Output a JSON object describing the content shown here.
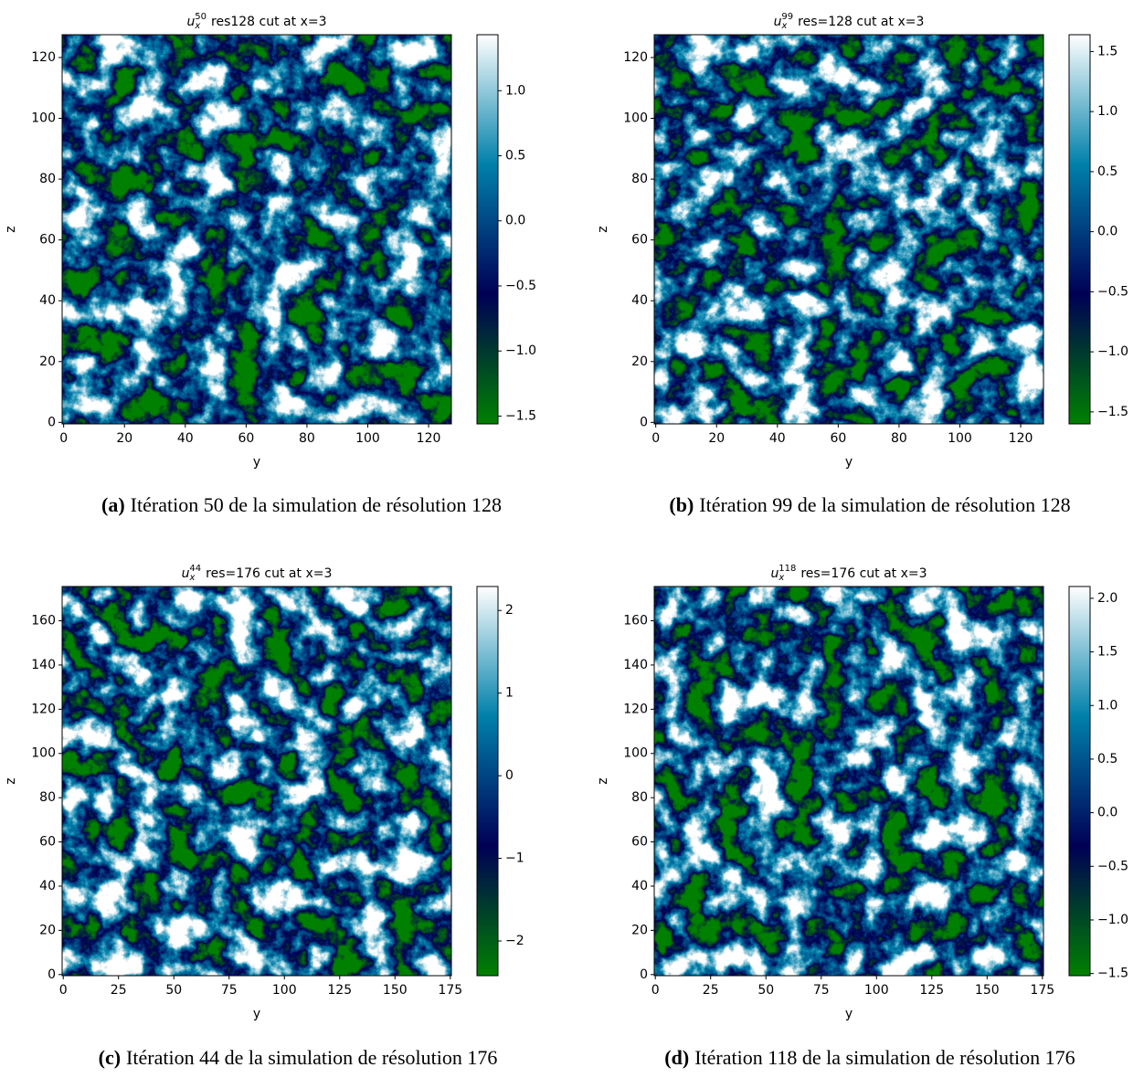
{
  "chart_data": [
    {
      "type": "heatmap",
      "title": {
        "symbol": "u",
        "subscript": "x",
        "superscript": "50",
        "text": "res128 cut at x=3"
      },
      "xlabel": "y",
      "ylabel": "z",
      "xlim": [
        -0.5,
        127.5
      ],
      "ylim": [
        -0.5,
        127.5
      ],
      "xticks": [
        0,
        20,
        40,
        60,
        80,
        100,
        120
      ],
      "yticks": [
        0,
        20,
        40,
        60,
        80,
        100,
        120
      ],
      "clim": [
        -1.56,
        1.43
      ],
      "colorbar_ticks": [
        {
          "value": -1.5,
          "label": "−1.5"
        },
        {
          "value": -1.0,
          "label": "−1.0"
        },
        {
          "value": -0.5,
          "label": "−0.5"
        },
        {
          "value": 0.0,
          "label": "0.0"
        },
        {
          "value": 0.5,
          "label": "0.5"
        },
        {
          "value": 1.0,
          "label": "1.0"
        }
      ],
      "colormap": [
        "#008000",
        "#000055",
        "#0080aa",
        "#ffffff"
      ],
      "caption": {
        "label": "(a)",
        "text": "Itération 50 de la simulation de résolution 128"
      }
    },
    {
      "type": "heatmap",
      "title": {
        "symbol": "u",
        "subscript": "x",
        "superscript": "99",
        "text": "res=128 cut at x=3"
      },
      "xlabel": "y",
      "ylabel": "z",
      "xlim": [
        -0.5,
        127.5
      ],
      "ylim": [
        -0.5,
        127.5
      ],
      "xticks": [
        0,
        20,
        40,
        60,
        80,
        100,
        120
      ],
      "yticks": [
        0,
        20,
        40,
        60,
        80,
        100,
        120
      ],
      "clim": [
        -1.6,
        1.64
      ],
      "colorbar_ticks": [
        {
          "value": -1.5,
          "label": "−1.5"
        },
        {
          "value": -1.0,
          "label": "−1.0"
        },
        {
          "value": -0.5,
          "label": "−0.5"
        },
        {
          "value": 0.0,
          "label": "0.0"
        },
        {
          "value": 0.5,
          "label": "0.5"
        },
        {
          "value": 1.0,
          "label": "1.0"
        },
        {
          "value": 1.5,
          "label": "1.5"
        }
      ],
      "colormap": [
        "#008000",
        "#000055",
        "#0080aa",
        "#ffffff"
      ],
      "caption": {
        "label": "(b)",
        "text": "Itération 99 de la simulation de résolution 128"
      }
    },
    {
      "type": "heatmap",
      "title": {
        "symbol": "u",
        "subscript": "x",
        "superscript": "44",
        "text": "res=176 cut at x=3"
      },
      "xlabel": "y",
      "ylabel": "z",
      "xlim": [
        -0.5,
        175.5
      ],
      "ylim": [
        -0.5,
        175.5
      ],
      "xticks": [
        0,
        25,
        50,
        75,
        100,
        125,
        150,
        175
      ],
      "yticks": [
        0,
        20,
        40,
        60,
        80,
        100,
        120,
        140,
        160
      ],
      "clim": [
        -2.42,
        2.29
      ],
      "colorbar_ticks": [
        {
          "value": -2,
          "label": "−2"
        },
        {
          "value": -1,
          "label": "−1"
        },
        0,
        1,
        2
      ],
      "colormap": [
        "#008000",
        "#000055",
        "#0080aa",
        "#ffffff"
      ],
      "caption": {
        "label": "(c)",
        "text": "Itération 44 de la simulation de résolution 176"
      }
    },
    {
      "type": "heatmap",
      "title": {
        "symbol": "u",
        "subscript": "x",
        "superscript": "118",
        "text": "res=176 cut at x=3"
      },
      "xlabel": "y",
      "ylabel": "z",
      "xlim": [
        -0.5,
        175.5
      ],
      "ylim": [
        -0.5,
        175.5
      ],
      "xticks": [
        0,
        25,
        50,
        75,
        100,
        125,
        150,
        175
      ],
      "yticks": [
        0,
        20,
        40,
        60,
        80,
        100,
        120,
        140,
        160
      ],
      "clim": [
        -1.52,
        2.11
      ],
      "colorbar_ticks": [
        {
          "value": -1.5,
          "label": "−1.5"
        },
        {
          "value": -1.0,
          "label": "−1.0"
        },
        {
          "value": -0.5,
          "label": "−0.5"
        },
        {
          "value": 0.0,
          "label": "0.0"
        },
        {
          "value": 0.5,
          "label": "0.5"
        },
        {
          "value": 1.0,
          "label": "1.0"
        },
        {
          "value": 1.5,
          "label": "1.5"
        },
        {
          "value": 2.0,
          "label": "2.0"
        }
      ],
      "colormap": [
        "#008000",
        "#000055",
        "#0080aa",
        "#ffffff"
      ],
      "caption": {
        "label": "(d)",
        "text": "Itération 118 de la simulation de résolution 176"
      }
    }
  ]
}
